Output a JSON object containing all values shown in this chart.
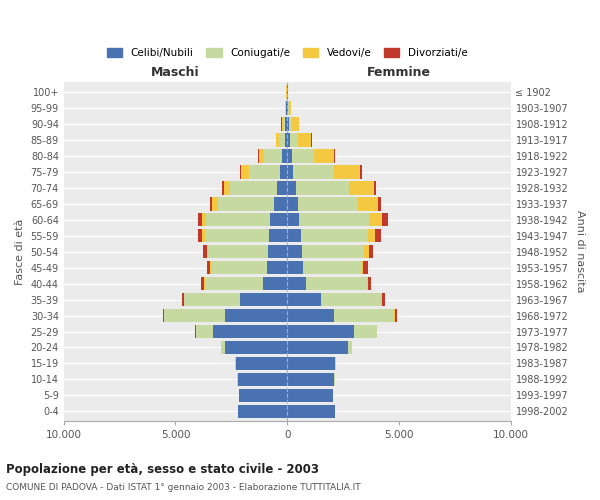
{
  "age_groups": [
    "0-4",
    "5-9",
    "10-14",
    "15-19",
    "20-24",
    "25-29",
    "30-34",
    "35-39",
    "40-44",
    "45-49",
    "50-54",
    "55-59",
    "60-64",
    "65-69",
    "70-74",
    "75-79",
    "80-84",
    "85-89",
    "90-94",
    "95-99",
    "100+"
  ],
  "birth_years": [
    "1998-2002",
    "1993-1997",
    "1988-1992",
    "1983-1987",
    "1978-1982",
    "1973-1977",
    "1968-1972",
    "1963-1967",
    "1958-1962",
    "1953-1957",
    "1948-1952",
    "1943-1947",
    "1938-1942",
    "1933-1937",
    "1928-1932",
    "1923-1927",
    "1918-1922",
    "1913-1917",
    "1908-1912",
    "1903-1907",
    "≤ 1902"
  ],
  "colors": {
    "celibi": "#4a72b0",
    "coniugati": "#c5d9a0",
    "vedovi": "#f5c842",
    "divorziati": "#c0392b"
  },
  "males": {
    "celibi": [
      2200,
      2150,
      2200,
      2300,
      2800,
      3300,
      2800,
      2100,
      1100,
      900,
      850,
      800,
      750,
      600,
      450,
      300,
      220,
      120,
      80,
      50,
      20
    ],
    "coniugati": [
      0,
      0,
      40,
      30,
      150,
      800,
      2700,
      2500,
      2600,
      2500,
      2700,
      2900,
      2900,
      2500,
      2100,
      1400,
      800,
      250,
      100,
      40,
      10
    ],
    "vedovi": [
      0,
      0,
      0,
      0,
      0,
      0,
      10,
      20,
      20,
      40,
      60,
      100,
      150,
      250,
      300,
      350,
      250,
      120,
      70,
      20,
      5
    ],
    "divorziati": [
      0,
      0,
      0,
      0,
      10,
      20,
      60,
      80,
      120,
      160,
      180,
      200,
      200,
      100,
      80,
      50,
      30,
      20,
      10,
      5,
      0
    ]
  },
  "females": {
    "celibi": [
      2150,
      2050,
      2100,
      2150,
      2700,
      3000,
      2100,
      1500,
      850,
      700,
      650,
      600,
      550,
      480,
      380,
      280,
      200,
      120,
      100,
      50,
      20
    ],
    "coniugati": [
      0,
      0,
      50,
      50,
      200,
      1000,
      2700,
      2700,
      2700,
      2600,
      2800,
      3000,
      3100,
      2700,
      2400,
      1800,
      1000,
      350,
      120,
      30,
      10
    ],
    "vedovi": [
      0,
      0,
      0,
      0,
      5,
      10,
      20,
      40,
      60,
      100,
      200,
      350,
      600,
      900,
      1100,
      1200,
      900,
      600,
      300,
      100,
      10
    ],
    "divorziati": [
      0,
      0,
      0,
      0,
      10,
      20,
      80,
      120,
      150,
      200,
      200,
      250,
      250,
      100,
      100,
      60,
      40,
      20,
      10,
      5,
      0
    ]
  },
  "title": "Popolazione per età, sesso e stato civile - 2003",
  "subtitle": "COMUNE DI PADOVA - Dati ISTAT 1° gennaio 2003 - Elaborazione TUTTITALIA.IT",
  "xlabel_left": "Maschi",
  "xlabel_right": "Femmine",
  "ylabel_left": "Fasce di età",
  "ylabel_right": "Anni di nascita",
  "xlim": 10000,
  "xticks": [
    -10000,
    -5000,
    0,
    5000,
    10000
  ],
  "xticklabels": [
    "10.000",
    "5.000",
    "0",
    "5.000",
    "10.000"
  ],
  "legend_labels": [
    "Celibi/Nubili",
    "Coniugati/e",
    "Vedovi/e",
    "Divorziati/e"
  ],
  "bar_height": 0.85
}
